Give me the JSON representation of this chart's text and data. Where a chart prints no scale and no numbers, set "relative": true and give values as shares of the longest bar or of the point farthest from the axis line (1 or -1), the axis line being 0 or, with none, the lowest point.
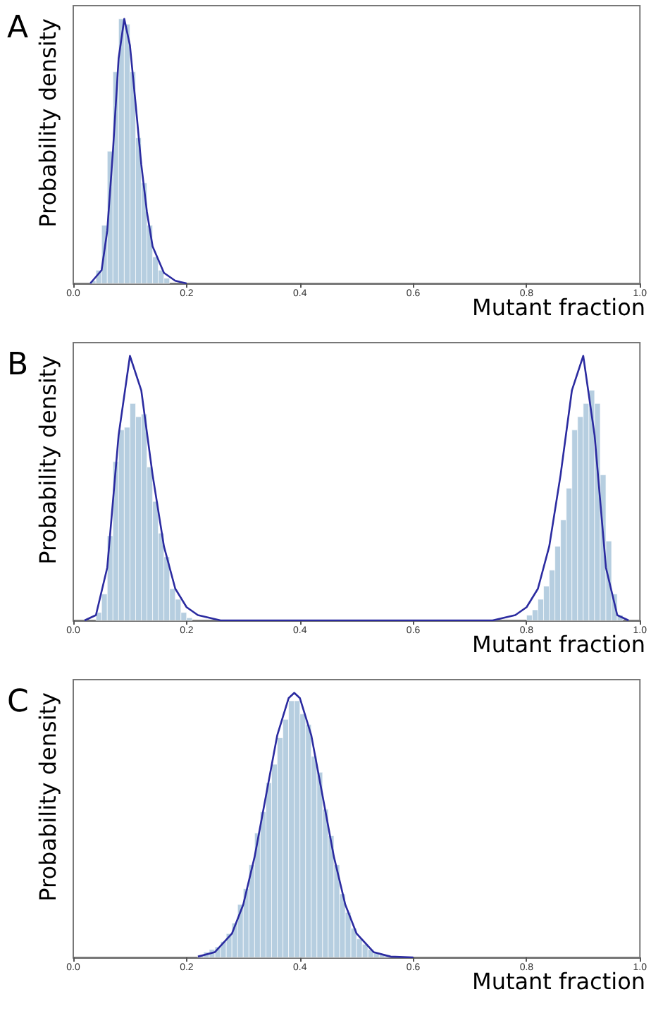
{
  "chart_data": [
    {
      "type": "histogram",
      "title": "A",
      "xlabel": "Mutant fraction",
      "ylabel": "Probability density",
      "relative": true,
      "xlim": [
        0,
        1
      ],
      "xticks": [
        {
          "value": 0,
          "label": "0.0"
        },
        {
          "value": 0.2,
          "label": "0.2"
        },
        {
          "value": 0.4,
          "label": "0.4"
        },
        {
          "value": 0.6,
          "label": "0.6"
        },
        {
          "value": 0.8,
          "label": "0.8"
        },
        {
          "value": 1,
          "label": "1.0"
        }
      ],
      "tick_labels": "x",
      "grid": false,
      "series": [
        {
          "color": "#a9c6db",
          "bins": [
            0.03,
            0.04,
            0.05,
            0.06,
            0.07,
            0.08,
            0.09,
            0.1,
            0.11,
            0.12,
            0.13,
            0.14,
            0.15,
            0.16,
            0.17
          ],
          "values": [
            0.01,
            0.05,
            0.22,
            0.5,
            0.8,
            1.0,
            0.98,
            0.8,
            0.55,
            0.38,
            0.22,
            0.1,
            0.05,
            0.02
          ]
        },
        {
          "type": "line",
          "color": "#2b2ba0",
          "x": [
            0.03,
            0.05,
            0.06,
            0.07,
            0.08,
            0.09,
            0.1,
            0.11,
            0.12,
            0.13,
            0.14,
            0.16,
            0.18,
            0.2
          ],
          "values": [
            0,
            0.05,
            0.2,
            0.5,
            0.85,
            1.0,
            0.9,
            0.68,
            0.45,
            0.27,
            0.14,
            0.04,
            0.01,
            0
          ]
        }
      ]
    },
    {
      "type": "histogram",
      "title": "B",
      "xlabel": "Mutant fraction",
      "ylabel": "Probability density",
      "relative": true,
      "xlim": [
        0,
        1
      ],
      "xticks": [
        {
          "value": 0,
          "label": "0.0"
        },
        {
          "value": 0.2,
          "label": "0.2"
        },
        {
          "value": 0.4,
          "label": "0.4"
        },
        {
          "value": 0.6,
          "label": "0.6"
        },
        {
          "value": 0.8,
          "label": "0.8"
        },
        {
          "value": 1,
          "label": "1.0"
        }
      ],
      "tick_labels": "x",
      "grid": false,
      "series": [
        {
          "color": "#a9c6db",
          "bins": [
            0.04,
            0.05,
            0.06,
            0.07,
            0.08,
            0.09,
            0.1,
            0.11,
            0.12,
            0.13,
            0.14,
            0.15,
            0.16,
            0.17,
            0.18,
            0.19,
            0.2,
            0.21
          ],
          "values": [
            0.03,
            0.1,
            0.32,
            0.6,
            0.72,
            0.73,
            0.82,
            0.77,
            0.78,
            0.58,
            0.45,
            0.33,
            0.24,
            0.12,
            0.08,
            0.03,
            0.01
          ]
        },
        {
          "color": "#a9c6db",
          "bins": [
            0.8,
            0.81,
            0.82,
            0.83,
            0.84,
            0.85,
            0.86,
            0.87,
            0.88,
            0.89,
            0.9,
            0.91,
            0.92,
            0.93,
            0.94,
            0.95,
            0.96,
            0.97
          ],
          "values": [
            0.02,
            0.04,
            0.08,
            0.13,
            0.19,
            0.28,
            0.38,
            0.5,
            0.72,
            0.77,
            0.82,
            0.87,
            0.82,
            0.55,
            0.3,
            0.1,
            0.02
          ]
        },
        {
          "type": "line",
          "color": "#2b2ba0",
          "x": [
            0.02,
            0.04,
            0.06,
            0.08,
            0.1,
            0.12,
            0.14,
            0.16,
            0.18,
            0.2,
            0.22,
            0.26,
            0.74,
            0.78,
            0.8,
            0.82,
            0.84,
            0.86,
            0.88,
            0.9,
            0.92,
            0.94,
            0.96,
            0.98
          ],
          "values": [
            0,
            0.02,
            0.2,
            0.7,
            1.0,
            0.87,
            0.55,
            0.28,
            0.12,
            0.05,
            0.02,
            0,
            0,
            0.02,
            0.05,
            0.12,
            0.28,
            0.55,
            0.87,
            1.0,
            0.7,
            0.2,
            0.02,
            0
          ]
        }
      ]
    },
    {
      "type": "histogram",
      "title": "C",
      "xlabel": "Mutant fraction",
      "ylabel": "Probability density",
      "relative": true,
      "xlim": [
        0,
        1
      ],
      "xticks": [
        {
          "value": 0,
          "label": "0.0"
        },
        {
          "value": 0.2,
          "label": "0.2"
        },
        {
          "value": 0.4,
          "label": "0.4"
        },
        {
          "value": 0.6,
          "label": "0.6"
        },
        {
          "value": 0.8,
          "label": "0.8"
        },
        {
          "value": 1,
          "label": "1.0"
        }
      ],
      "tick_labels": "x",
      "grid": false,
      "series": [
        {
          "color": "#a9c6db",
          "bins": [
            0.22,
            0.23,
            0.24,
            0.25,
            0.26,
            0.27,
            0.28,
            0.29,
            0.3,
            0.31,
            0.32,
            0.33,
            0.34,
            0.35,
            0.36,
            0.37,
            0.38,
            0.39,
            0.4,
            0.41,
            0.42,
            0.43,
            0.44,
            0.45,
            0.46,
            0.47,
            0.48,
            0.49,
            0.5,
            0.51,
            0.52,
            0.53,
            0.54,
            0.55,
            0.56
          ],
          "values": [
            0.01,
            0.02,
            0.03,
            0.04,
            0.06,
            0.09,
            0.13,
            0.2,
            0.26,
            0.35,
            0.47,
            0.55,
            0.66,
            0.73,
            0.83,
            0.9,
            0.97,
            0.97,
            0.92,
            0.88,
            0.76,
            0.7,
            0.56,
            0.46,
            0.35,
            0.24,
            0.17,
            0.11,
            0.07,
            0.05,
            0.03,
            0.02,
            0.01,
            0.01
          ]
        },
        {
          "type": "line",
          "color": "#2b2ba0",
          "x": [
            0.22,
            0.25,
            0.28,
            0.3,
            0.32,
            0.34,
            0.36,
            0.38,
            0.39,
            0.4,
            0.42,
            0.44,
            0.46,
            0.48,
            0.5,
            0.53,
            0.56,
            0.6
          ],
          "values": [
            0.003,
            0.02,
            0.09,
            0.2,
            0.38,
            0.61,
            0.84,
            0.98,
            1.0,
            0.98,
            0.84,
            0.61,
            0.38,
            0.2,
            0.09,
            0.02,
            0.003,
            0
          ]
        }
      ]
    }
  ]
}
